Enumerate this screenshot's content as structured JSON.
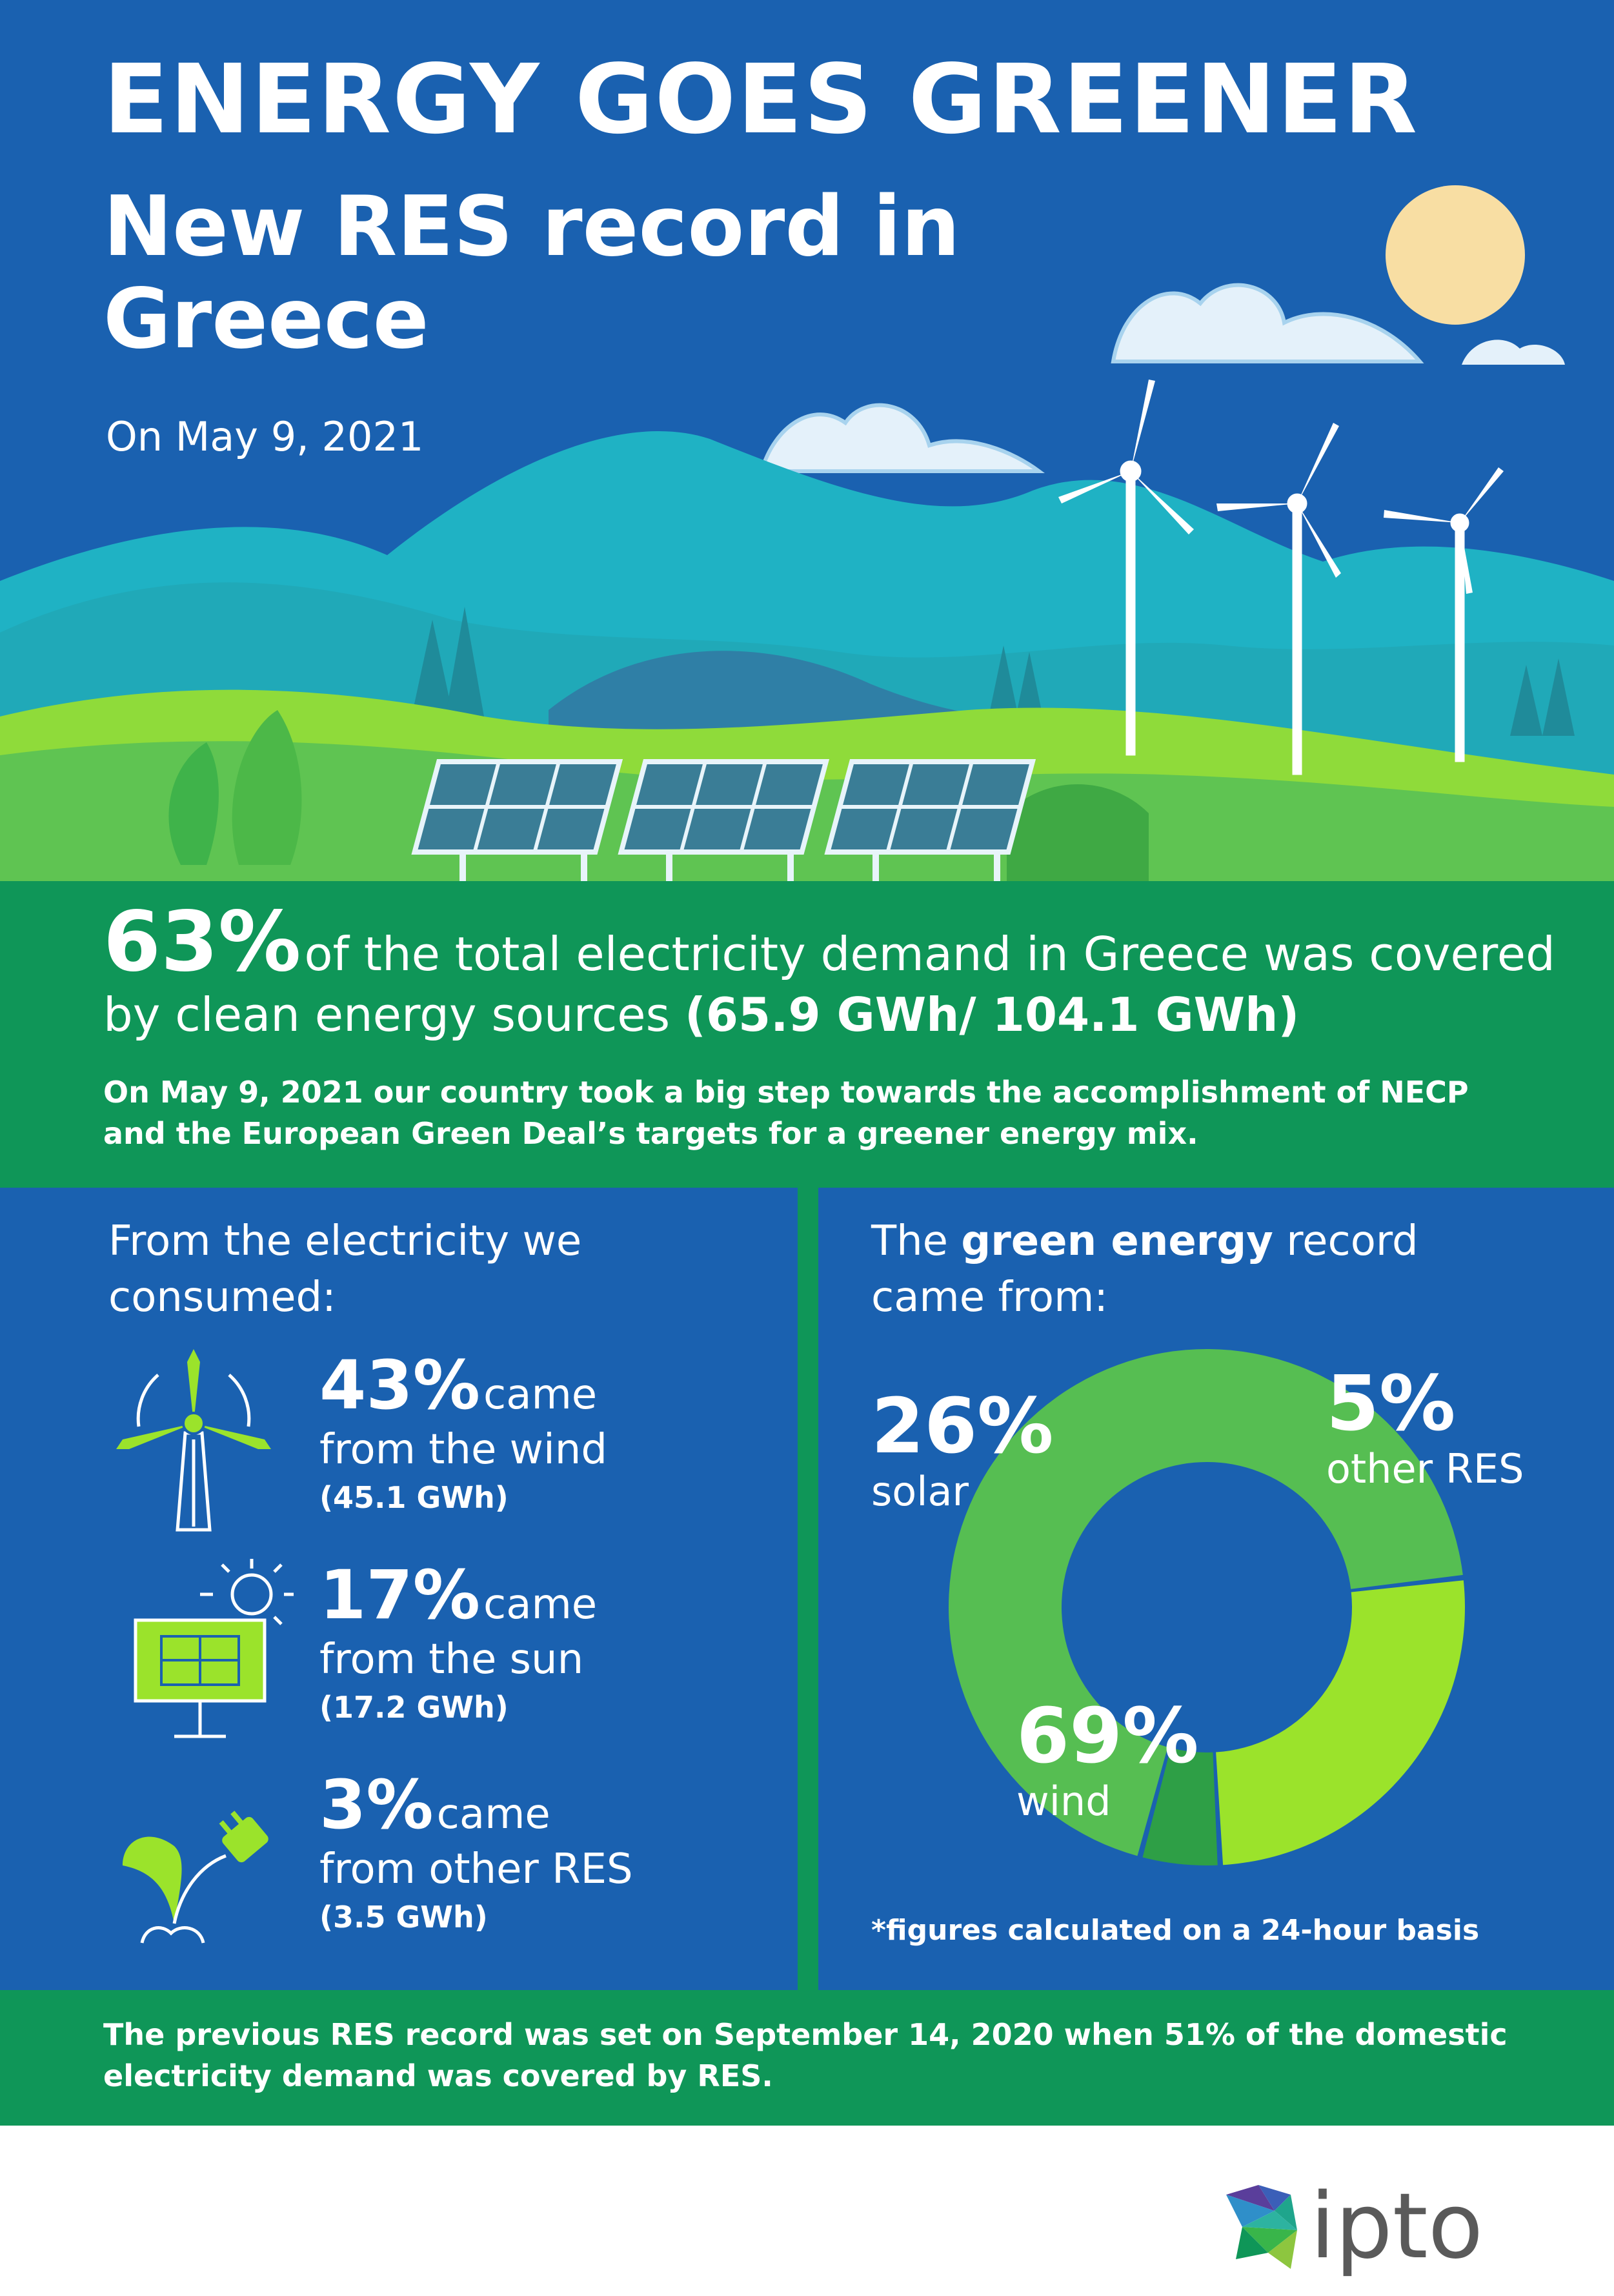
{
  "hero": {
    "title": "ENERGY GOES GREENER",
    "subtitle": "New RES record in Greece",
    "date": "On May 9, 2021"
  },
  "statement": {
    "big_percent": "63%",
    "line1_rest": "of the total electricity demand in Greece was covered",
    "line2_prefix": "by clean energy sources",
    "line2_bold": "(65.9 GWh/ 104.1 GWh)",
    "note": "On May 9, 2021 our country took a big step towards the accomplishment of NECP and the European Green Deal’s targets for a greener energy mix."
  },
  "consumption": {
    "intro": "From the electricity we consumed:",
    "items": [
      {
        "percent": "43%",
        "came": "came",
        "from": "from the wind",
        "gwh": "(45.1 GWh)",
        "icon": "wind-turbine-icon"
      },
      {
        "percent": "17%",
        "came": "came",
        "from": "from the sun",
        "gwh": "(17.2 GWh)",
        "icon": "solar-panel-icon"
      },
      {
        "percent": "3%",
        "came": "came",
        "from": "from other RES",
        "gwh": "(3.5 GWh)",
        "icon": "plant-plug-icon"
      }
    ]
  },
  "record": {
    "intro_prefix": "The",
    "intro_bold": "green energy",
    "intro_suffix": "record came from:",
    "footnote": "*figures calculated on a 24-hour basis"
  },
  "chart_data": {
    "type": "pie",
    "title": "",
    "categories": [
      "wind",
      "solar",
      "other RES"
    ],
    "values": [
      69,
      26,
      5
    ],
    "labels": [
      "69%",
      "26%",
      "5%"
    ],
    "colors": [
      "#56be52",
      "#9be32b",
      "#2e9f46"
    ]
  },
  "bottom": {
    "text": "The previous RES record was set on September 14, 2020 when 51% of the domestic electricity demand was covered by RES."
  },
  "footer": {
    "logo_text": "ipto"
  },
  "colors": {
    "blue": "#1a61b0",
    "green": "#0f9658",
    "lime": "#9be32b",
    "wind_green": "#56be52"
  }
}
